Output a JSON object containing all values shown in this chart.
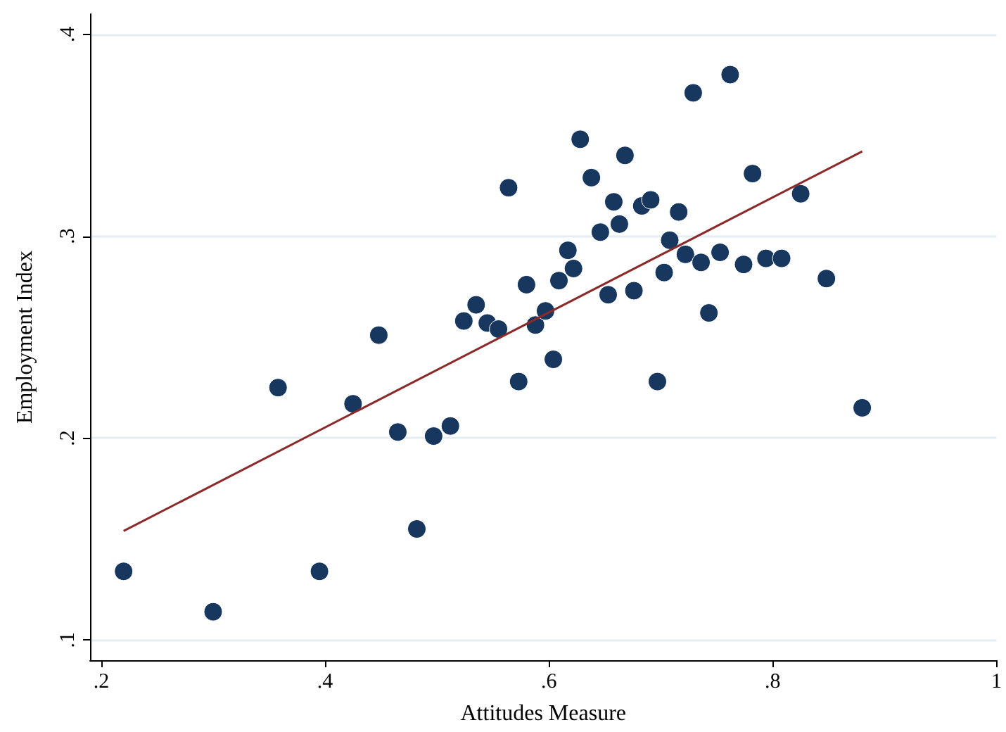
{
  "chart_data": {
    "type": "scatter",
    "xlabel": "Attitudes Measure",
    "ylabel": "Employment Index",
    "xlim": [
      0.19,
      1.0
    ],
    "ylim": [
      0.09,
      0.41
    ],
    "xticks": [
      {
        "value": 0.2,
        "label": ".2"
      },
      {
        "value": 0.4,
        "label": ".4"
      },
      {
        "value": 0.6,
        "label": ".6"
      },
      {
        "value": 0.8,
        "label": ".8"
      },
      {
        "value": 1,
        "label": "1"
      }
    ],
    "yticks": [
      {
        "value": 0.1,
        "label": ".1"
      },
      {
        "value": 0.2,
        "label": ".2"
      },
      {
        "value": 0.3,
        "label": ".3"
      },
      {
        "value": 0.4,
        "label": ".4"
      }
    ],
    "grid": "y",
    "marker": "circle",
    "series": [
      {
        "color": "#17375e",
        "x": [
          0.22,
          0.3,
          0.358,
          0.395,
          0.425,
          0.448,
          0.465,
          0.482,
          0.497,
          0.512,
          0.524,
          0.535,
          0.545,
          0.555,
          0.564,
          0.573,
          0.58,
          0.588,
          0.597,
          0.604,
          0.609,
          0.617,
          0.622,
          0.628,
          0.638,
          0.646,
          0.653,
          0.658,
          0.663,
          0.668,
          0.676,
          0.683,
          0.691,
          0.697,
          0.703,
          0.708,
          0.716,
          0.722,
          0.729,
          0.736,
          0.743,
          0.753,
          0.762,
          0.774,
          0.782,
          0.794,
          0.808,
          0.825,
          0.848,
          0.88
        ],
        "values": [
          0.134,
          0.114,
          0.225,
          0.134,
          0.217,
          0.251,
          0.203,
          0.155,
          0.201,
          0.206,
          0.258,
          0.266,
          0.257,
          0.254,
          0.324,
          0.228,
          0.276,
          0.256,
          0.263,
          0.239,
          0.278,
          0.293,
          0.284,
          0.348,
          0.329,
          0.302,
          0.271,
          0.317,
          0.306,
          0.34,
          0.273,
          0.315,
          0.318,
          0.228,
          0.282,
          0.298,
          0.312,
          0.291,
          0.371,
          0.287,
          0.262,
          0.292,
          0.38,
          0.286,
          0.331,
          0.289,
          0.289,
          0.321,
          0.279,
          0.215
        ]
      },
      {
        "type": "line",
        "color": "#8b2a2a",
        "marker": "none",
        "line_style": "solid",
        "x": [
          0.22,
          0.88
        ],
        "values": [
          0.154,
          0.342
        ]
      }
    ]
  }
}
